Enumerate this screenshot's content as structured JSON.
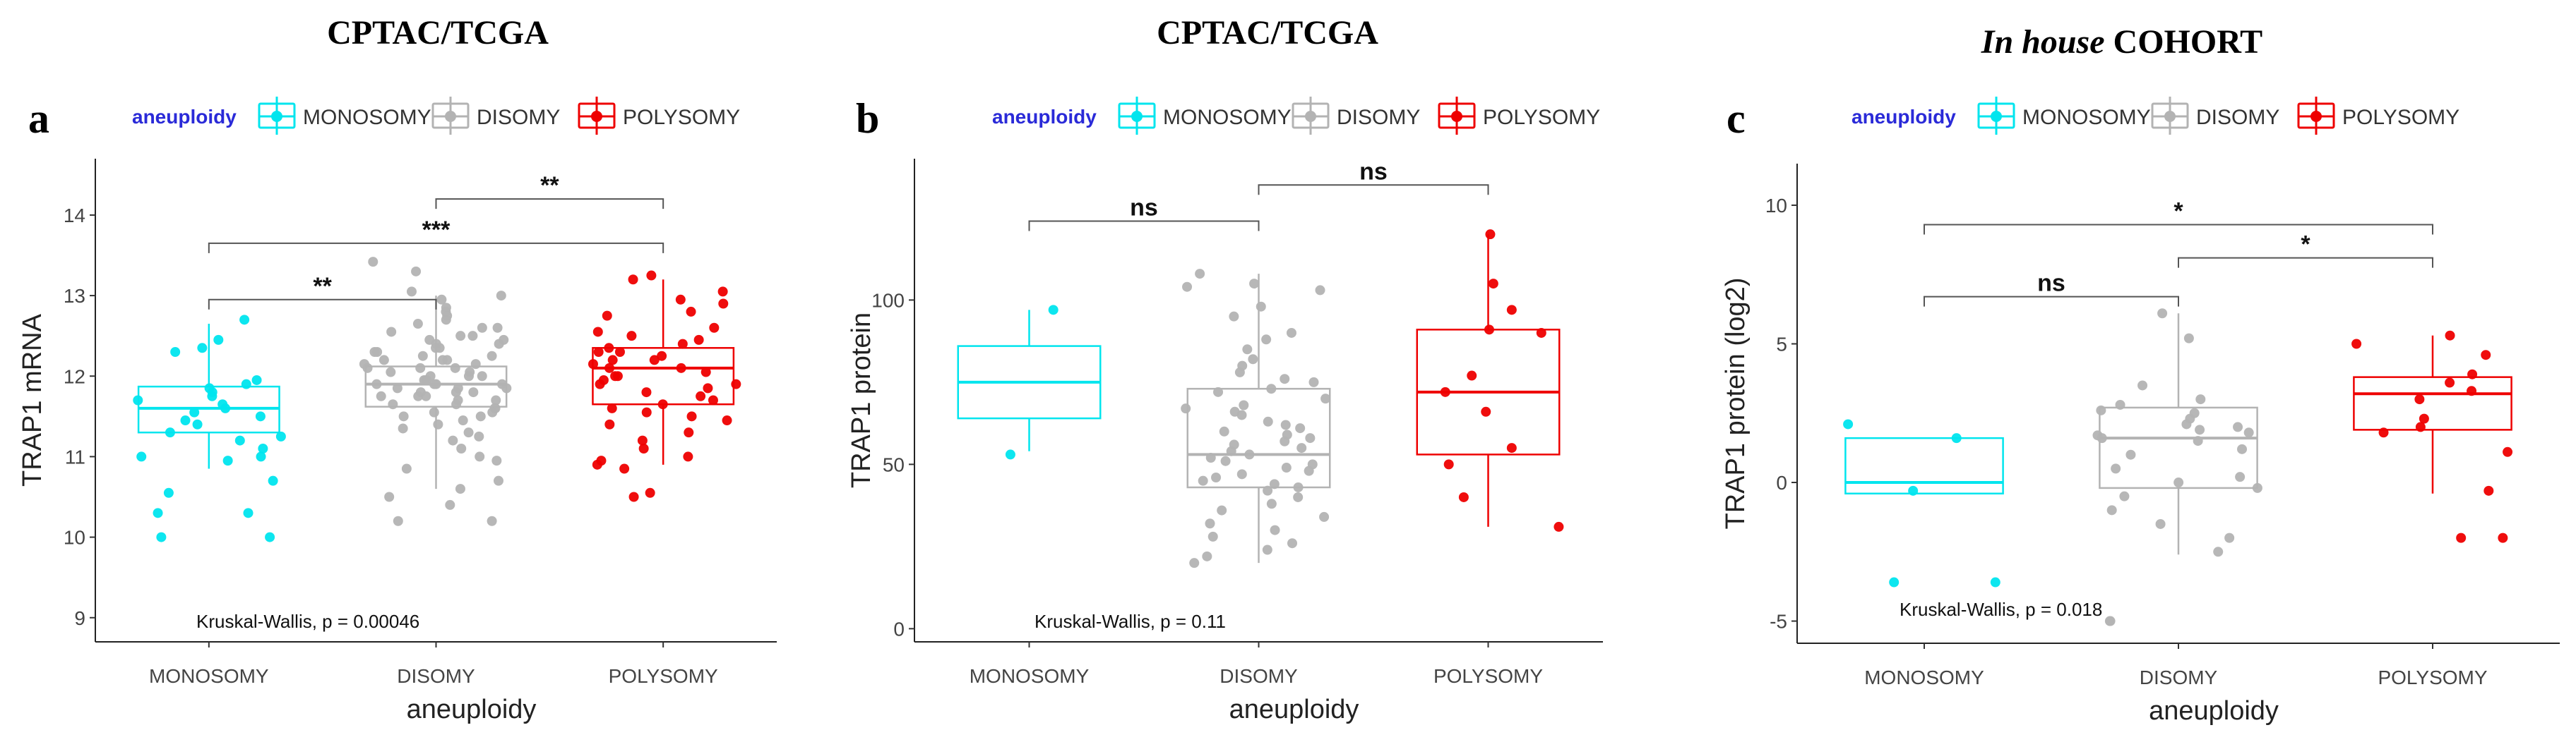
{
  "legend": {
    "title": "aneuploidy",
    "items": [
      {
        "label": "MONOSOMY",
        "color": "#00e5ee"
      },
      {
        "label": "DISOMY",
        "color": "#b3b3b3"
      },
      {
        "label": "POLYSOMY",
        "color": "#ee0000"
      }
    ]
  },
  "chart_data": [
    {
      "type": "box",
      "panel_label": "a",
      "title": "CPTAC/TCGA",
      "xlabel": "aneuploidy",
      "ylabel": "TRAP1 mRNA",
      "ylim": [
        8.7,
        14.7
      ],
      "yticks": [
        9,
        10,
        11,
        12,
        13,
        14
      ],
      "categories": [
        "MONOSOMY",
        "DISOMY",
        "POLYSOMY"
      ],
      "colors": [
        "#00e5ee",
        "#b3b3b3",
        "#ee0000"
      ],
      "boxes": [
        {
          "whisker_low": 10.85,
          "q1": 11.3,
          "median": 11.6,
          "q3": 11.87,
          "whisker_high": 12.65
        },
        {
          "whisker_low": 10.6,
          "q1": 11.62,
          "median": 11.9,
          "q3": 12.12,
          "whisker_high": 13.0
        },
        {
          "whisker_low": 10.9,
          "q1": 11.65,
          "median": 12.1,
          "q3": 12.35,
          "whisker_high": 13.2
        }
      ],
      "points": [
        [
          12.7,
          12.45,
          12.35,
          12.3,
          11.95,
          11.9,
          11.85,
          11.8,
          11.75,
          11.7,
          11.65,
          11.6,
          11.55,
          11.5,
          11.45,
          11.4,
          11.3,
          11.25,
          11.2,
          11.1,
          11.0,
          11.0,
          10.95,
          10.7,
          10.55,
          10.3,
          10.3,
          10.0,
          10.0
        ],
        [
          13.42,
          13.3,
          13.05,
          13.0,
          12.95,
          12.85,
          12.8,
          12.75,
          12.7,
          12.65,
          12.6,
          12.6,
          12.55,
          12.5,
          12.5,
          12.45,
          12.45,
          12.4,
          12.4,
          12.35,
          12.35,
          12.3,
          12.3,
          12.25,
          12.25,
          12.2,
          12.2,
          12.2,
          12.15,
          12.15,
          12.1,
          12.1,
          12.1,
          12.05,
          12.05,
          12.0,
          12.0,
          12.0,
          11.95,
          11.95,
          11.95,
          11.9,
          11.9,
          11.9,
          11.9,
          11.85,
          11.85,
          11.85,
          11.8,
          11.8,
          11.8,
          11.75,
          11.75,
          11.75,
          11.7,
          11.7,
          11.65,
          11.65,
          11.6,
          11.6,
          11.55,
          11.55,
          11.5,
          11.5,
          11.45,
          11.4,
          11.35,
          11.3,
          11.25,
          11.2,
          11.1,
          11.0,
          10.95,
          10.85,
          10.7,
          10.6,
          10.5,
          10.4,
          10.2,
          10.2
        ],
        [
          13.25,
          13.2,
          13.05,
          12.95,
          12.9,
          12.8,
          12.75,
          12.6,
          12.55,
          12.5,
          12.45,
          12.4,
          12.35,
          12.3,
          12.3,
          12.25,
          12.2,
          12.2,
          12.15,
          12.1,
          12.1,
          12.05,
          12.0,
          12.0,
          11.95,
          11.9,
          11.9,
          11.85,
          11.8,
          11.75,
          11.7,
          11.65,
          11.6,
          11.55,
          11.5,
          11.45,
          11.4,
          11.3,
          11.2,
          11.1,
          11.0,
          10.95,
          10.9,
          10.85,
          10.55,
          10.5
        ]
      ],
      "kruskal": "Kruskal-Wallis, p = 0.00046",
      "comparisons": [
        {
          "from": 0,
          "to": 1,
          "label": "**",
          "y": 12.95
        },
        {
          "from": 0,
          "to": 2,
          "label": "***",
          "y": 13.65
        },
        {
          "from": 1,
          "to": 2,
          "label": "**",
          "y": 14.2
        }
      ]
    },
    {
      "type": "box",
      "panel_label": "b",
      "title": "CPTAC/TCGA",
      "xlabel": "aneuploidy",
      "ylabel": "TRAP1 protein",
      "ylim": [
        -4,
        143
      ],
      "yticks": [
        0,
        50,
        100
      ],
      "categories": [
        "MONOSOMY",
        "DISOMY",
        "POLYSOMY"
      ],
      "colors": [
        "#00e5ee",
        "#b3b3b3",
        "#ee0000"
      ],
      "boxes": [
        {
          "whisker_low": 54,
          "q1": 64,
          "median": 75,
          "q3": 86,
          "whisker_high": 97
        },
        {
          "whisker_low": 20,
          "q1": 43,
          "median": 53,
          "q3": 73,
          "whisker_high": 108
        },
        {
          "whisker_low": 31,
          "q1": 53,
          "median": 72,
          "q3": 91,
          "whisker_high": 120
        }
      ],
      "points": [
        [
          97,
          53
        ],
        [
          108,
          105,
          104,
          103,
          98,
          95,
          90,
          88,
          85,
          82,
          80,
          78,
          76,
          75,
          73,
          72,
          70,
          68,
          67,
          66,
          65,
          63,
          62,
          61,
          60,
          59,
          58,
          57,
          56,
          55,
          54,
          53,
          52,
          51,
          50,
          49,
          48,
          47,
          46,
          45,
          44,
          43,
          42,
          40,
          38,
          36,
          34,
          32,
          30,
          28,
          26,
          24,
          22,
          20
        ],
        [
          120,
          105,
          97,
          91,
          90,
          77,
          72,
          66,
          55,
          50,
          40,
          31
        ]
      ],
      "kruskal": "Kruskal-Wallis, p = 0.11",
      "comparisons": [
        {
          "from": 0,
          "to": 1,
          "label": "ns",
          "y": 124
        },
        {
          "from": 1,
          "to": 2,
          "label": "ns",
          "y": 135
        }
      ]
    },
    {
      "type": "box",
      "panel_label": "c",
      "title_italic": "In house",
      "title_rest": "COHORT",
      "xlabel": "aneuploidy",
      "ylabel": "TRAP1 protein (log2)",
      "ylim": [
        -5.8,
        11.5
      ],
      "yticks": [
        -5,
        0,
        5,
        10
      ],
      "yticklabels": [
        "-5",
        "0",
        "5",
        "10"
      ],
      "categories": [
        "MONOSOMY",
        "DISOMY",
        "POLYSOMY"
      ],
      "colors": [
        "#00e5ee",
        "#b3b3b3",
        "#ee0000"
      ],
      "boxes": [
        {
          "whisker_low": -0.4,
          "q1": -0.4,
          "median": 0.0,
          "q3": 1.6,
          "whisker_high": 1.6
        },
        {
          "whisker_low": -2.6,
          "q1": -0.2,
          "median": 1.6,
          "q3": 2.7,
          "whisker_high": 6.1
        },
        {
          "whisker_low": -0.4,
          "q1": 1.9,
          "median": 3.2,
          "q3": 3.8,
          "whisker_high": 5.3
        }
      ],
      "points": [
        [
          2.1,
          1.6,
          -0.3,
          -3.6,
          -3.6
        ],
        [
          6.1,
          5.2,
          3.5,
          3.0,
          2.8,
          2.6,
          2.5,
          2.3,
          2.1,
          2.0,
          1.9,
          1.8,
          1.7,
          1.6,
          1.5,
          1.2,
          1.0,
          0.5,
          0.2,
          0.0,
          -0.2,
          -0.5,
          -1.0,
          -1.5,
          -2.0,
          -2.5,
          -5.0,
          -5.0
        ],
        [
          5.3,
          5.0,
          4.6,
          3.9,
          3.6,
          3.3,
          3.0,
          2.3,
          2.0,
          1.8,
          1.1,
          -0.3,
          -2.0,
          -2.0
        ]
      ],
      "kruskal": "Kruskal-Wallis, p = 0.018",
      "comparisons": [
        {
          "from": 0,
          "to": 1,
          "label": "ns",
          "y": 6.7
        },
        {
          "from": 1,
          "to": 2,
          "label": "*",
          "y": 8.1
        },
        {
          "from": 0,
          "to": 2,
          "label": "*",
          "y": 9.3
        }
      ]
    }
  ]
}
